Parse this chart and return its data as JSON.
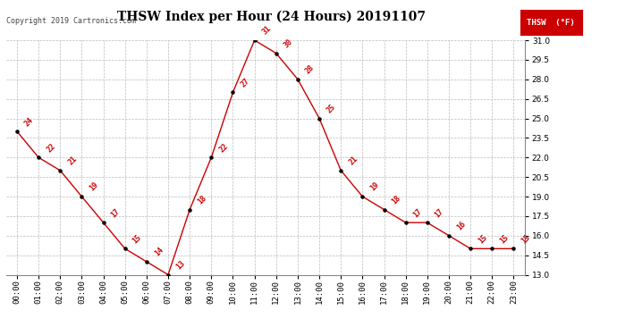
{
  "title": "THSW Index per Hour (24 Hours) 20191107",
  "copyright": "Copyright 2019 Cartronics.com",
  "legend_label": "THSW  (°F)",
  "hours": [
    0,
    1,
    2,
    3,
    4,
    5,
    6,
    7,
    8,
    9,
    10,
    11,
    12,
    13,
    14,
    15,
    16,
    17,
    18,
    19,
    20,
    21,
    22,
    23
  ],
  "values": [
    24,
    22,
    21,
    19,
    17,
    15,
    14,
    13,
    18,
    22,
    27,
    31,
    30,
    28,
    25,
    21,
    19,
    18,
    17,
    17,
    16,
    15,
    15,
    15
  ],
  "ylim": [
    13.0,
    31.0
  ],
  "yticks": [
    13.0,
    14.5,
    16.0,
    17.5,
    19.0,
    20.5,
    22.0,
    23.5,
    25.0,
    26.5,
    28.0,
    29.5,
    31.0
  ],
  "line_color": "#cc0000",
  "marker_color": "#000000",
  "label_color": "#cc0000",
  "background_color": "#ffffff",
  "grid_color": "#bbbbbb",
  "title_fontsize": 10,
  "label_fontsize": 6,
  "tick_fontsize": 6.5,
  "copyright_fontsize": 6
}
